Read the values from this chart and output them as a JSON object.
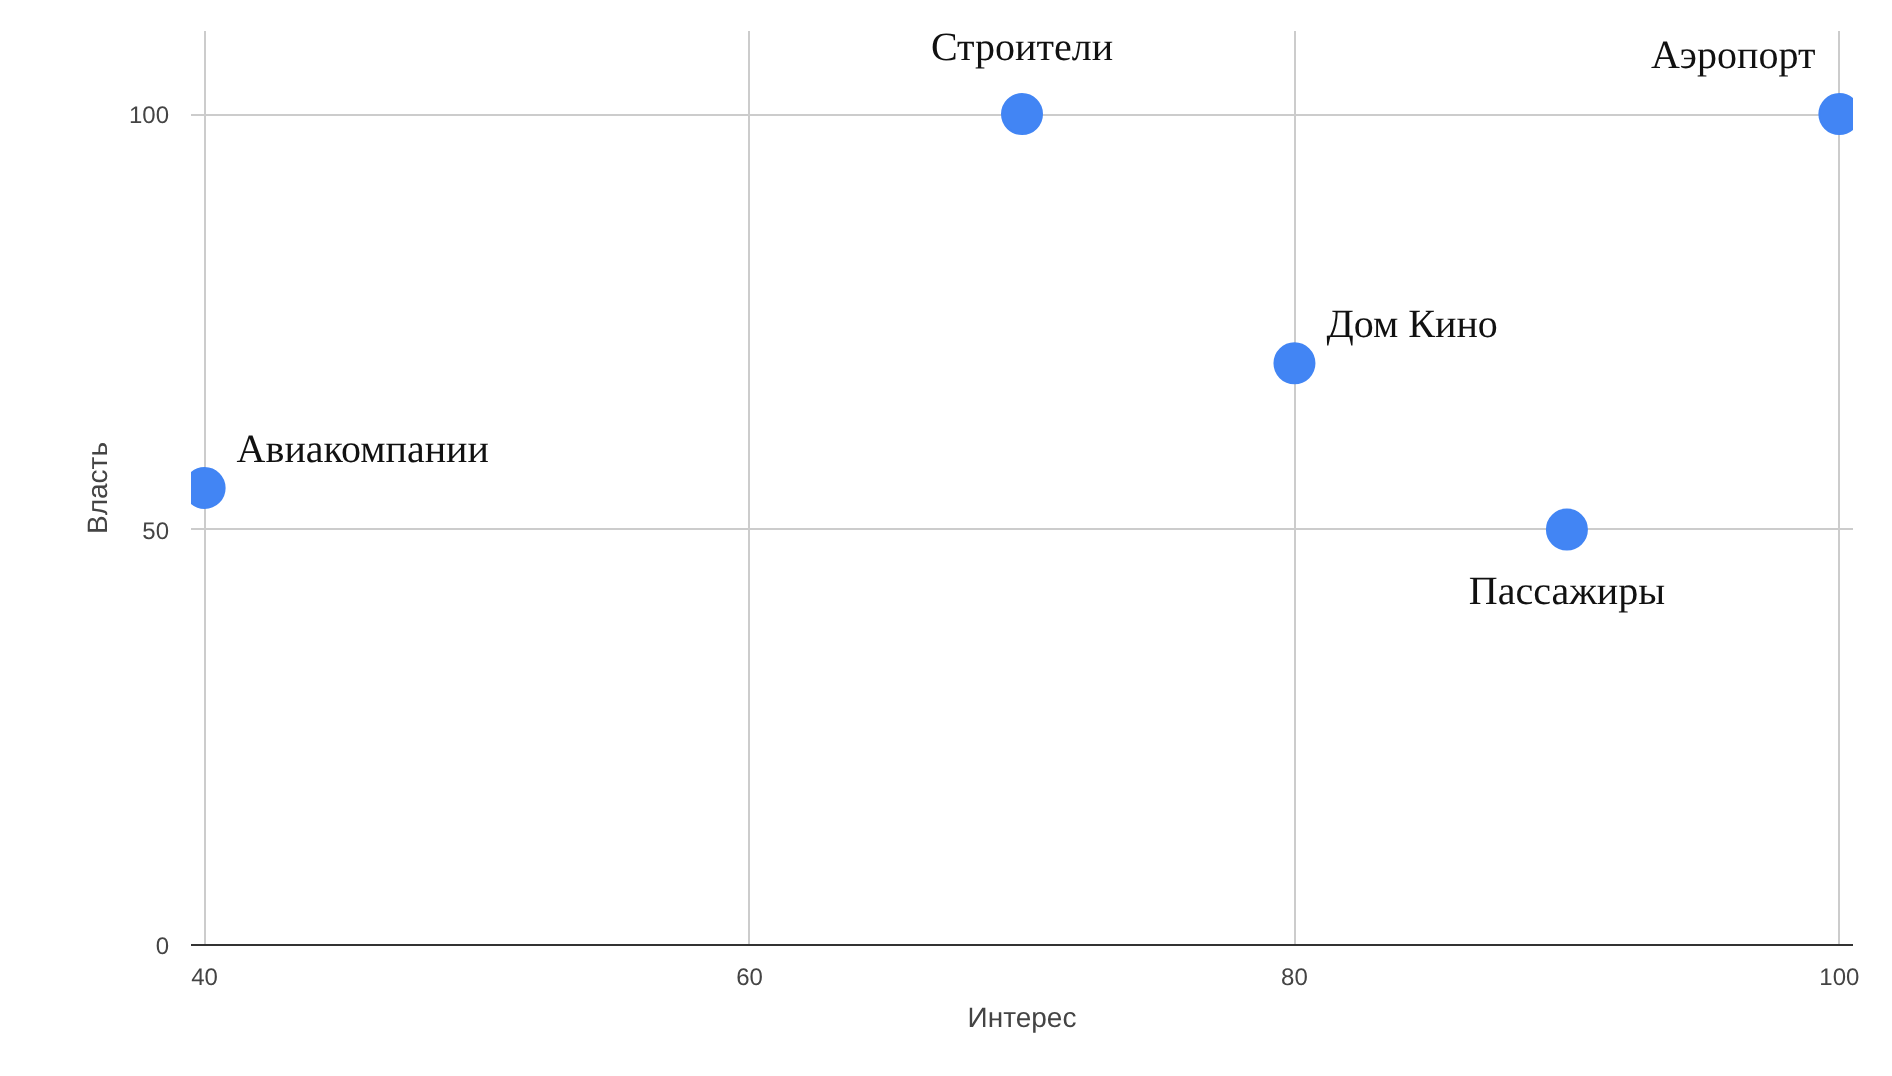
{
  "chart_data": {
    "type": "scatter",
    "xlabel": "Интерес",
    "ylabel": "Власть",
    "x": [
      40,
      70,
      80,
      90,
      100
    ],
    "series": [
      {
        "color": "#4285f4",
        "values": [
          55,
          100,
          70,
          50,
          100
        ]
      }
    ],
    "annotations": [
      {
        "text": "Авиакомпании",
        "x": 40,
        "y": 55
      },
      {
        "text": "Строители",
        "x": 70,
        "y": 100
      },
      {
        "text": "Дом Кино",
        "x": 80,
        "y": 70
      },
      {
        "text": "Пассажиры",
        "x": 90,
        "y": 50
      },
      {
        "text": "Аэропорт",
        "x": 100,
        "y": 100
      }
    ],
    "xlim": [
      39.5,
      100.5
    ],
    "ylim": [
      0,
      110
    ],
    "xticks": [
      40,
      60,
      80,
      100
    ],
    "yticks": [
      0,
      50,
      100
    ],
    "grid": true,
    "marker": "circle"
  }
}
